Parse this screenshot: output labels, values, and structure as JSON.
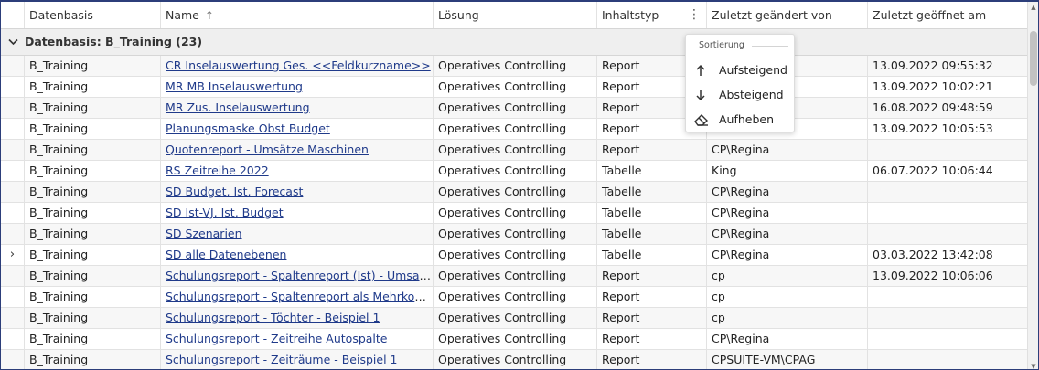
{
  "columns": {
    "datenbasis": "Datenbasis",
    "name": "Name",
    "name_sort": "↑",
    "loesung": "Lösung",
    "inhaltstyp": "Inhaltstyp",
    "geaendert_von": "Zuletzt geändert von",
    "geoeffnet_am": "Zuletzt geöffnet am"
  },
  "group": {
    "label": "Datenbasis: B_Training (23)",
    "chevron": "⌄"
  },
  "rows": [
    {
      "datenbasis": "B_Training",
      "name": "CR Inselauswertung Ges. <<Feldkurzname>>",
      "loesung": "Operatives Controlling",
      "inhaltstyp": "Report",
      "geaendert_von": "",
      "geoeffnet_am": "13.09.2022 09:55:32",
      "expander": ""
    },
    {
      "datenbasis": "B_Training",
      "name": "MR MB Inselauswertung",
      "loesung": "Operatives Controlling",
      "inhaltstyp": "Report",
      "geaendert_von": "",
      "geoeffnet_am": "13.09.2022 10:02:21",
      "expander": ""
    },
    {
      "datenbasis": "B_Training",
      "name": "MR Zus. Inselauswertung",
      "loesung": "Operatives Controlling",
      "inhaltstyp": "Report",
      "geaendert_von": "",
      "geoeffnet_am": "16.08.2022 09:48:59",
      "expander": ""
    },
    {
      "datenbasis": "B_Training",
      "name": "Planungsmaske Obst Budget",
      "loesung": "Operatives Controlling",
      "inhaltstyp": "Report",
      "geaendert_von": "",
      "geoeffnet_am": "13.09.2022 10:05:53",
      "expander": ""
    },
    {
      "datenbasis": "B_Training",
      "name": "Quotenreport - Umsätze Maschinen",
      "loesung": "Operatives Controlling",
      "inhaltstyp": "Report",
      "geaendert_von": "CP\\Regina",
      "geoeffnet_am": "",
      "expander": ""
    },
    {
      "datenbasis": "B_Training",
      "name": "RS Zeitreihe 2022",
      "loesung": "Operatives Controlling",
      "inhaltstyp": "Tabelle",
      "geaendert_von": "King",
      "geoeffnet_am": "06.07.2022 10:06:44",
      "expander": ""
    },
    {
      "datenbasis": "B_Training",
      "name": "SD Budget, Ist, Forecast",
      "loesung": "Operatives Controlling",
      "inhaltstyp": "Tabelle",
      "geaendert_von": "CP\\Regina",
      "geoeffnet_am": "",
      "expander": ""
    },
    {
      "datenbasis": "B_Training",
      "name": "SD Ist-VJ, Ist, Budget",
      "loesung": "Operatives Controlling",
      "inhaltstyp": "Tabelle",
      "geaendert_von": "CP\\Regina",
      "geoeffnet_am": "",
      "expander": ""
    },
    {
      "datenbasis": "B_Training",
      "name": "SD Szenarien",
      "loesung": "Operatives Controlling",
      "inhaltstyp": "Tabelle",
      "geaendert_von": "CP\\Regina",
      "geoeffnet_am": "",
      "expander": ""
    },
    {
      "datenbasis": "B_Training",
      "name": "SD alle Datenebenen",
      "loesung": "Operatives Controlling",
      "inhaltstyp": "Tabelle",
      "geaendert_von": "CP\\Regina",
      "geoeffnet_am": "03.03.2022 13:42:08",
      "expander": "›"
    },
    {
      "datenbasis": "B_Training",
      "name": "Schulungsreport - Spaltenreport (Ist) - Umsatz Fi...",
      "loesung": "Operatives Controlling",
      "inhaltstyp": "Report",
      "geaendert_von": "cp",
      "geoeffnet_am": "13.09.2022 10:06:06",
      "expander": ""
    },
    {
      "datenbasis": "B_Training",
      "name": "Schulungsreport - Spaltenreport als Mehrkopfre...",
      "loesung": "Operatives Controlling",
      "inhaltstyp": "Report",
      "geaendert_von": "cp",
      "geoeffnet_am": "",
      "expander": ""
    },
    {
      "datenbasis": "B_Training",
      "name": "Schulungsreport - Töchter - Beispiel 1",
      "loesung": "Operatives Controlling",
      "inhaltstyp": "Report",
      "geaendert_von": "cp",
      "geoeffnet_am": "",
      "expander": ""
    },
    {
      "datenbasis": "B_Training",
      "name": "Schulungsreport - Zeitreihe Autospalte",
      "loesung": "Operatives Controlling",
      "inhaltstyp": "Report",
      "geaendert_von": "CP\\Regina",
      "geoeffnet_am": "",
      "expander": ""
    },
    {
      "datenbasis": "B_Training",
      "name": "Schulungsreport - Zeiträume - Beispiel 1",
      "loesung": "Operatives Controlling",
      "inhaltstyp": "Report",
      "geaendert_von": "CPSUITE-VM\\CPAG",
      "geoeffnet_am": "",
      "expander": ""
    }
  ],
  "sort_menu": {
    "title": "Sortierung",
    "items": [
      {
        "label": "Aufsteigend",
        "icon": "arrow-up-icon"
      },
      {
        "label": "Absteigend",
        "icon": "arrow-down-icon"
      },
      {
        "label": "Aufheben",
        "icon": "eraser-icon"
      }
    ]
  },
  "colors": {
    "frame": "#2c3e7a",
    "link": "#1f3a8a",
    "group_bg": "#efefef"
  }
}
